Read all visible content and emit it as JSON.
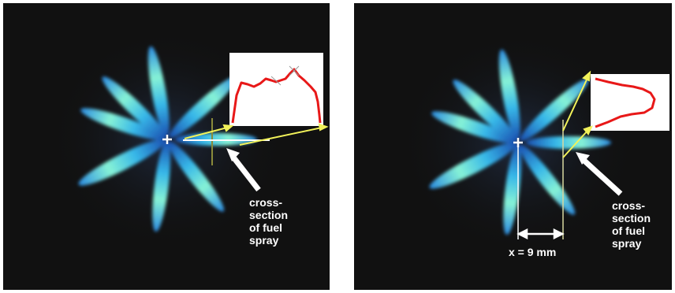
{
  "left_panel": {
    "caption": "cross-\nsection\nof fuel\nspray"
  },
  "right_panel": {
    "caption": "cross-\nsection\nof fuel\nspray",
    "distance_label": "x = 9 mm"
  },
  "colors": {
    "background": "#111111",
    "spray_core": "#7ff0d8",
    "spray_edge": "#1f6fd0",
    "profile_line": "#e81818",
    "arrow_yellow": "#f2f25a",
    "marker": "#ffffff"
  }
}
